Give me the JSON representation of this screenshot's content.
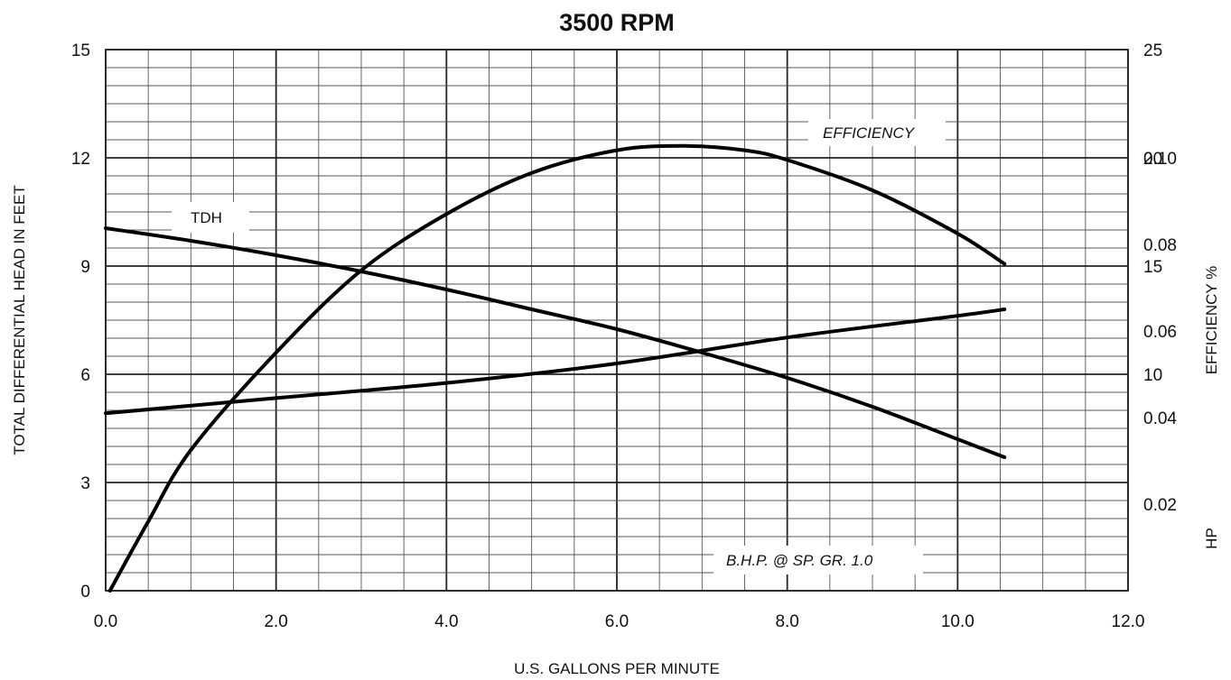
{
  "chart_data": {
    "type": "line",
    "title": "3500 RPM",
    "xlabel": "U.S. GALLONS PER MINUTE",
    "ylabel_left": "TOTAL DIFFERENTIAL HEAD IN FEET",
    "ylabel_right_efficiency": "EFFICIENCY %",
    "ylabel_right_hp": "HP",
    "xlim": [
      0,
      12
    ],
    "ylim_left": [
      0,
      15
    ],
    "ylim_efficiency": [
      0,
      25
    ],
    "ylim_hp": [
      0,
      0.125
    ],
    "x_ticks": [
      "0.0",
      "2.0",
      "4.0",
      "6.0",
      "8.0",
      "10.0",
      "12.0"
    ],
    "y_left_ticks": [
      "0",
      "3",
      "6",
      "9",
      "12",
      "15"
    ],
    "efficiency_ticks": [
      "10",
      "15",
      "20",
      "25"
    ],
    "hp_ticks": [
      "0.02",
      "0.04",
      "0.06",
      "0.08",
      "0.10"
    ],
    "grid": true,
    "series": [
      {
        "name": "TDH",
        "axis": "left",
        "x": [
          0,
          1,
          2,
          3,
          4,
          5,
          6,
          7,
          8,
          9,
          10,
          10.55
        ],
        "values": [
          10.05,
          9.7,
          9.3,
          8.85,
          8.35,
          7.8,
          7.25,
          6.6,
          5.9,
          5.1,
          4.2,
          3.7
        ]
      },
      {
        "name": "EFFICIENCY",
        "axis": "efficiency",
        "x": [
          0.05,
          0.5,
          1,
          2,
          3,
          4,
          5,
          6,
          6.8,
          7.5,
          8,
          9,
          10,
          10.55
        ],
        "values": [
          0,
          3.2,
          6.5,
          11.0,
          14.8,
          17.4,
          19.3,
          20.35,
          20.55,
          20.35,
          19.9,
          18.5,
          16.5,
          15.1
        ]
      },
      {
        "name": "B.H.P. @ SP. GR. 1.0",
        "axis": "hp",
        "x": [
          0,
          2,
          4,
          6,
          8,
          10,
          10.55
        ],
        "values": [
          0.041,
          0.0445,
          0.048,
          0.0525,
          0.0585,
          0.0635,
          0.065
        ]
      }
    ],
    "annotations": {
      "tdh": "TDH",
      "efficiency": "EFFICIENCY",
      "bhp": "B.H.P. @ SP. GR. 1.0"
    }
  }
}
